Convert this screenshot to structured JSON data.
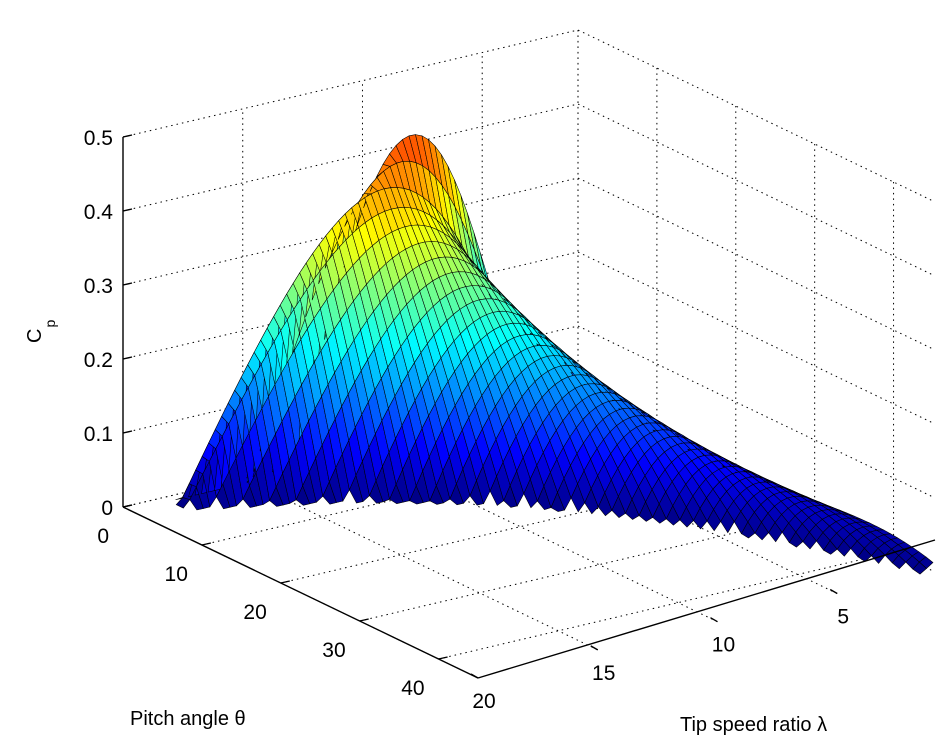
{
  "chart_data": {
    "type": "surface",
    "title": "",
    "xlabel": "Tip speed ratio λ",
    "ylabel": "Pitch angle θ",
    "zlabel_main": "C",
    "zlabel_sub": "p",
    "lambda_range": [
      1,
      20
    ],
    "theta_range": [
      0,
      45
    ],
    "zlim": [
      0,
      0.5
    ],
    "lambda_ticks": [
      "5",
      "10",
      "15",
      "20"
    ],
    "theta_ticks": [
      "0",
      "10",
      "20",
      "30",
      "40"
    ],
    "z_ticks": [
      "0",
      "0.1",
      "0.2",
      "0.3",
      "0.4",
      "0.5"
    ],
    "peak": {
      "lambda": 8.1,
      "theta": 0,
      "cp": 0.48
    },
    "colormap": "jet",
    "grid": true
  }
}
